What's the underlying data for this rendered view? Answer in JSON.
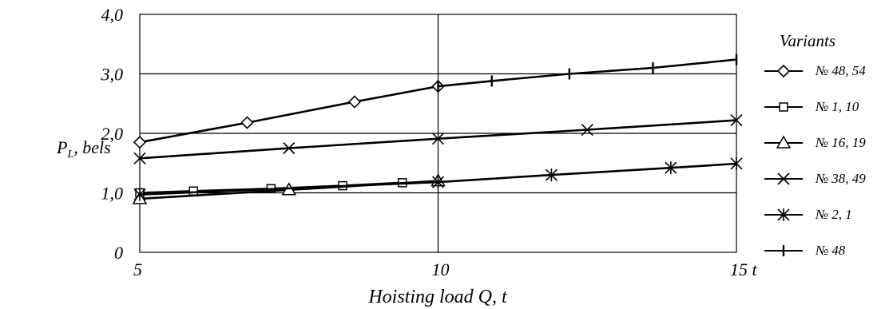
{
  "chart_data": {
    "type": "line",
    "title": "",
    "xlabel": "Hoisting load Q, t",
    "ylabel": "P",
    "ylabel_sub": "L",
    "ylabel_suffix": ", bels",
    "xlim": [
      5,
      15
    ],
    "ylim": [
      0,
      4
    ],
    "x_ticks": [
      5,
      10,
      15
    ],
    "x_tick_labels": [
      "5",
      "10",
      "15 t"
    ],
    "y_ticks": [
      0,
      1,
      2,
      3,
      4
    ],
    "y_tick_labels": [
      "0",
      "1,0",
      "2,0",
      "3,0",
      "4,0"
    ],
    "grid": "major x at 10; horizontal lines at 1, 2, 3",
    "legend_title": "Variants",
    "legend_position": "right",
    "series": [
      {
        "name": "№ 48, 54",
        "marker": "diamond",
        "points": [
          [
            5,
            1.85
          ],
          [
            6.8,
            2.18
          ],
          [
            8.6,
            2.53
          ],
          [
            10,
            2.79
          ]
        ]
      },
      {
        "name": "№ 1, 10",
        "marker": "square",
        "points": [
          [
            5,
            1.0
          ],
          [
            5.9,
            1.03
          ],
          [
            7.2,
            1.07
          ],
          [
            8.4,
            1.12
          ],
          [
            9.4,
            1.17
          ]
        ]
      },
      {
        "name": "№ 16, 19",
        "marker": "triangle",
        "points": [
          [
            5,
            0.9
          ],
          [
            7.5,
            1.05
          ],
          [
            10,
            1.2
          ]
        ]
      },
      {
        "name": "№ 38, 49",
        "marker": "x",
        "points": [
          [
            5,
            1.58
          ],
          [
            7.5,
            1.75
          ],
          [
            10,
            1.91
          ],
          [
            12.5,
            2.06
          ],
          [
            15,
            2.22
          ]
        ]
      },
      {
        "name": "№ 2, 1",
        "marker": "asterisk",
        "points": [
          [
            5,
            0.97
          ],
          [
            10,
            1.18
          ],
          [
            11.9,
            1.3
          ],
          [
            13.9,
            1.42
          ],
          [
            15,
            1.49
          ]
        ]
      },
      {
        "name": "№ 48",
        "marker": "plus",
        "points": [
          [
            10,
            2.79
          ],
          [
            10.9,
            2.88
          ],
          [
            12.2,
            3.0
          ],
          [
            13.6,
            3.1
          ],
          [
            15,
            3.24
          ]
        ]
      }
    ]
  }
}
